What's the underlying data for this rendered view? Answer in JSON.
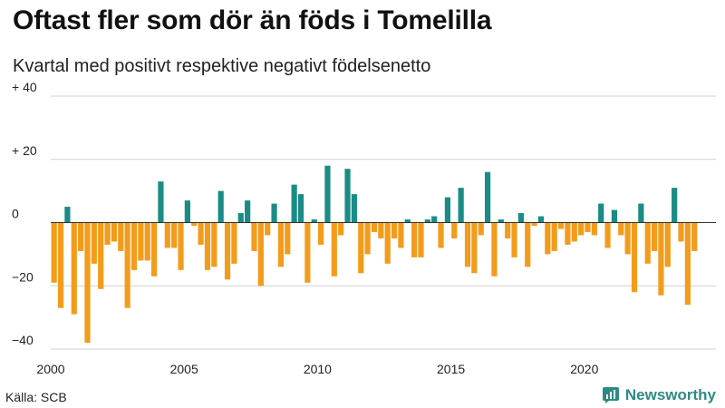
{
  "chart_data": {
    "type": "bar",
    "title": "Oftast fler som dör än föds i Tomelilla",
    "subtitle": "Kvartal med positivt respektive negativt födelsenetto",
    "xlabel": "",
    "ylabel": "",
    "ylim": [
      -40,
      40
    ],
    "y_ticks": [
      {
        "value": 40,
        "label": "+ 40"
      },
      {
        "value": 20,
        "label": "+ 20"
      },
      {
        "value": 0,
        "label": "0"
      },
      {
        "value": -20,
        "label": "−20"
      },
      {
        "value": -40,
        "label": "−40"
      }
    ],
    "x_ticks": [
      {
        "year": 2000,
        "label": "2000"
      },
      {
        "year": 2005,
        "label": "2005"
      },
      {
        "year": 2010,
        "label": "2010"
      },
      {
        "year": 2015,
        "label": "2015"
      },
      {
        "year": 2020,
        "label": "2020"
      }
    ],
    "start_year": 2000,
    "start_quarter": 1,
    "grid": true,
    "colors": {
      "positive": "#1a8c85",
      "negative": "#f39c1c",
      "grid": "#d0d0d0",
      "zero_line": "#333333"
    },
    "values": [
      -19,
      -27,
      5,
      -29,
      -9,
      -38,
      -13,
      -21,
      -7,
      -6,
      -9,
      -27,
      -15,
      -12,
      -12,
      -17,
      13,
      -8,
      -8,
      -15,
      7,
      -1,
      -7,
      -15,
      -14,
      10,
      -18,
      -13,
      3,
      7,
      -9,
      -20,
      -4,
      6,
      -14,
      -10,
      12,
      9,
      -19,
      1,
      -7,
      18,
      -17,
      -4,
      17,
      9,
      -16,
      -10,
      -3,
      -5,
      -13,
      -5,
      -8,
      1,
      -11,
      -11,
      1,
      2,
      -8,
      8,
      -5,
      11,
      -14,
      -16,
      -4,
      16,
      -17,
      1,
      -5,
      -11,
      3,
      -14,
      -1,
      2,
      -10,
      -9,
      -2,
      -7,
      -6,
      -4,
      -3,
      -4,
      6,
      -8,
      4,
      -4,
      -10,
      -22,
      6,
      -13,
      -9,
      -23,
      -14,
      11,
      -6,
      -26,
      -9
    ]
  },
  "footer": {
    "source": "Källa: SCB",
    "brand": "Newsworthy"
  }
}
